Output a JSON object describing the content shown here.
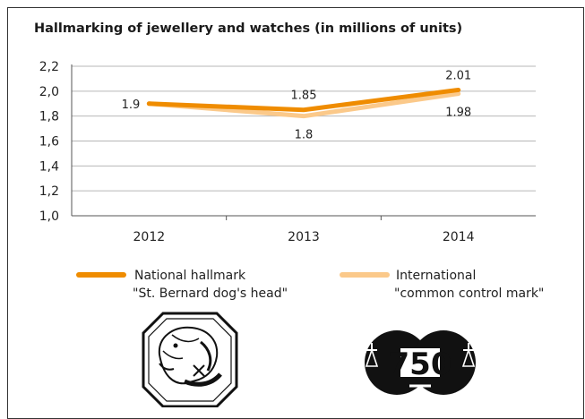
{
  "chart_data": {
    "type": "line",
    "title": "Hallmarking of jewellery and watches (in millions of units)",
    "categories": [
      "2012",
      "2013",
      "2014"
    ],
    "ylim": [
      1.0,
      2.2
    ],
    "yticks": [
      "1,0",
      "1,2",
      "1,4",
      "1,6",
      "1,8",
      "2,0",
      "2,2"
    ],
    "grid": true,
    "legend_position": "bottom",
    "series": [
      {
        "name_lines": [
          "National hallmark",
          "\"St. Bernard dog's head\""
        ],
        "values": [
          1.9,
          1.85,
          2.01
        ],
        "labels": [
          "1.9",
          "1.85",
          "2.01"
        ],
        "color": "#ef8c00"
      },
      {
        "name_lines": [
          "International",
          "\"common control mark\""
        ],
        "values": [
          1.9,
          1.8,
          1.98
        ],
        "labels": [
          "",
          "1.8",
          "1.98"
        ],
        "color": "#fbc98a"
      }
    ]
  },
  "logos": {
    "national": "st-bernard-dog-head-hallmark",
    "international": "common-control-mark-750-scales"
  }
}
